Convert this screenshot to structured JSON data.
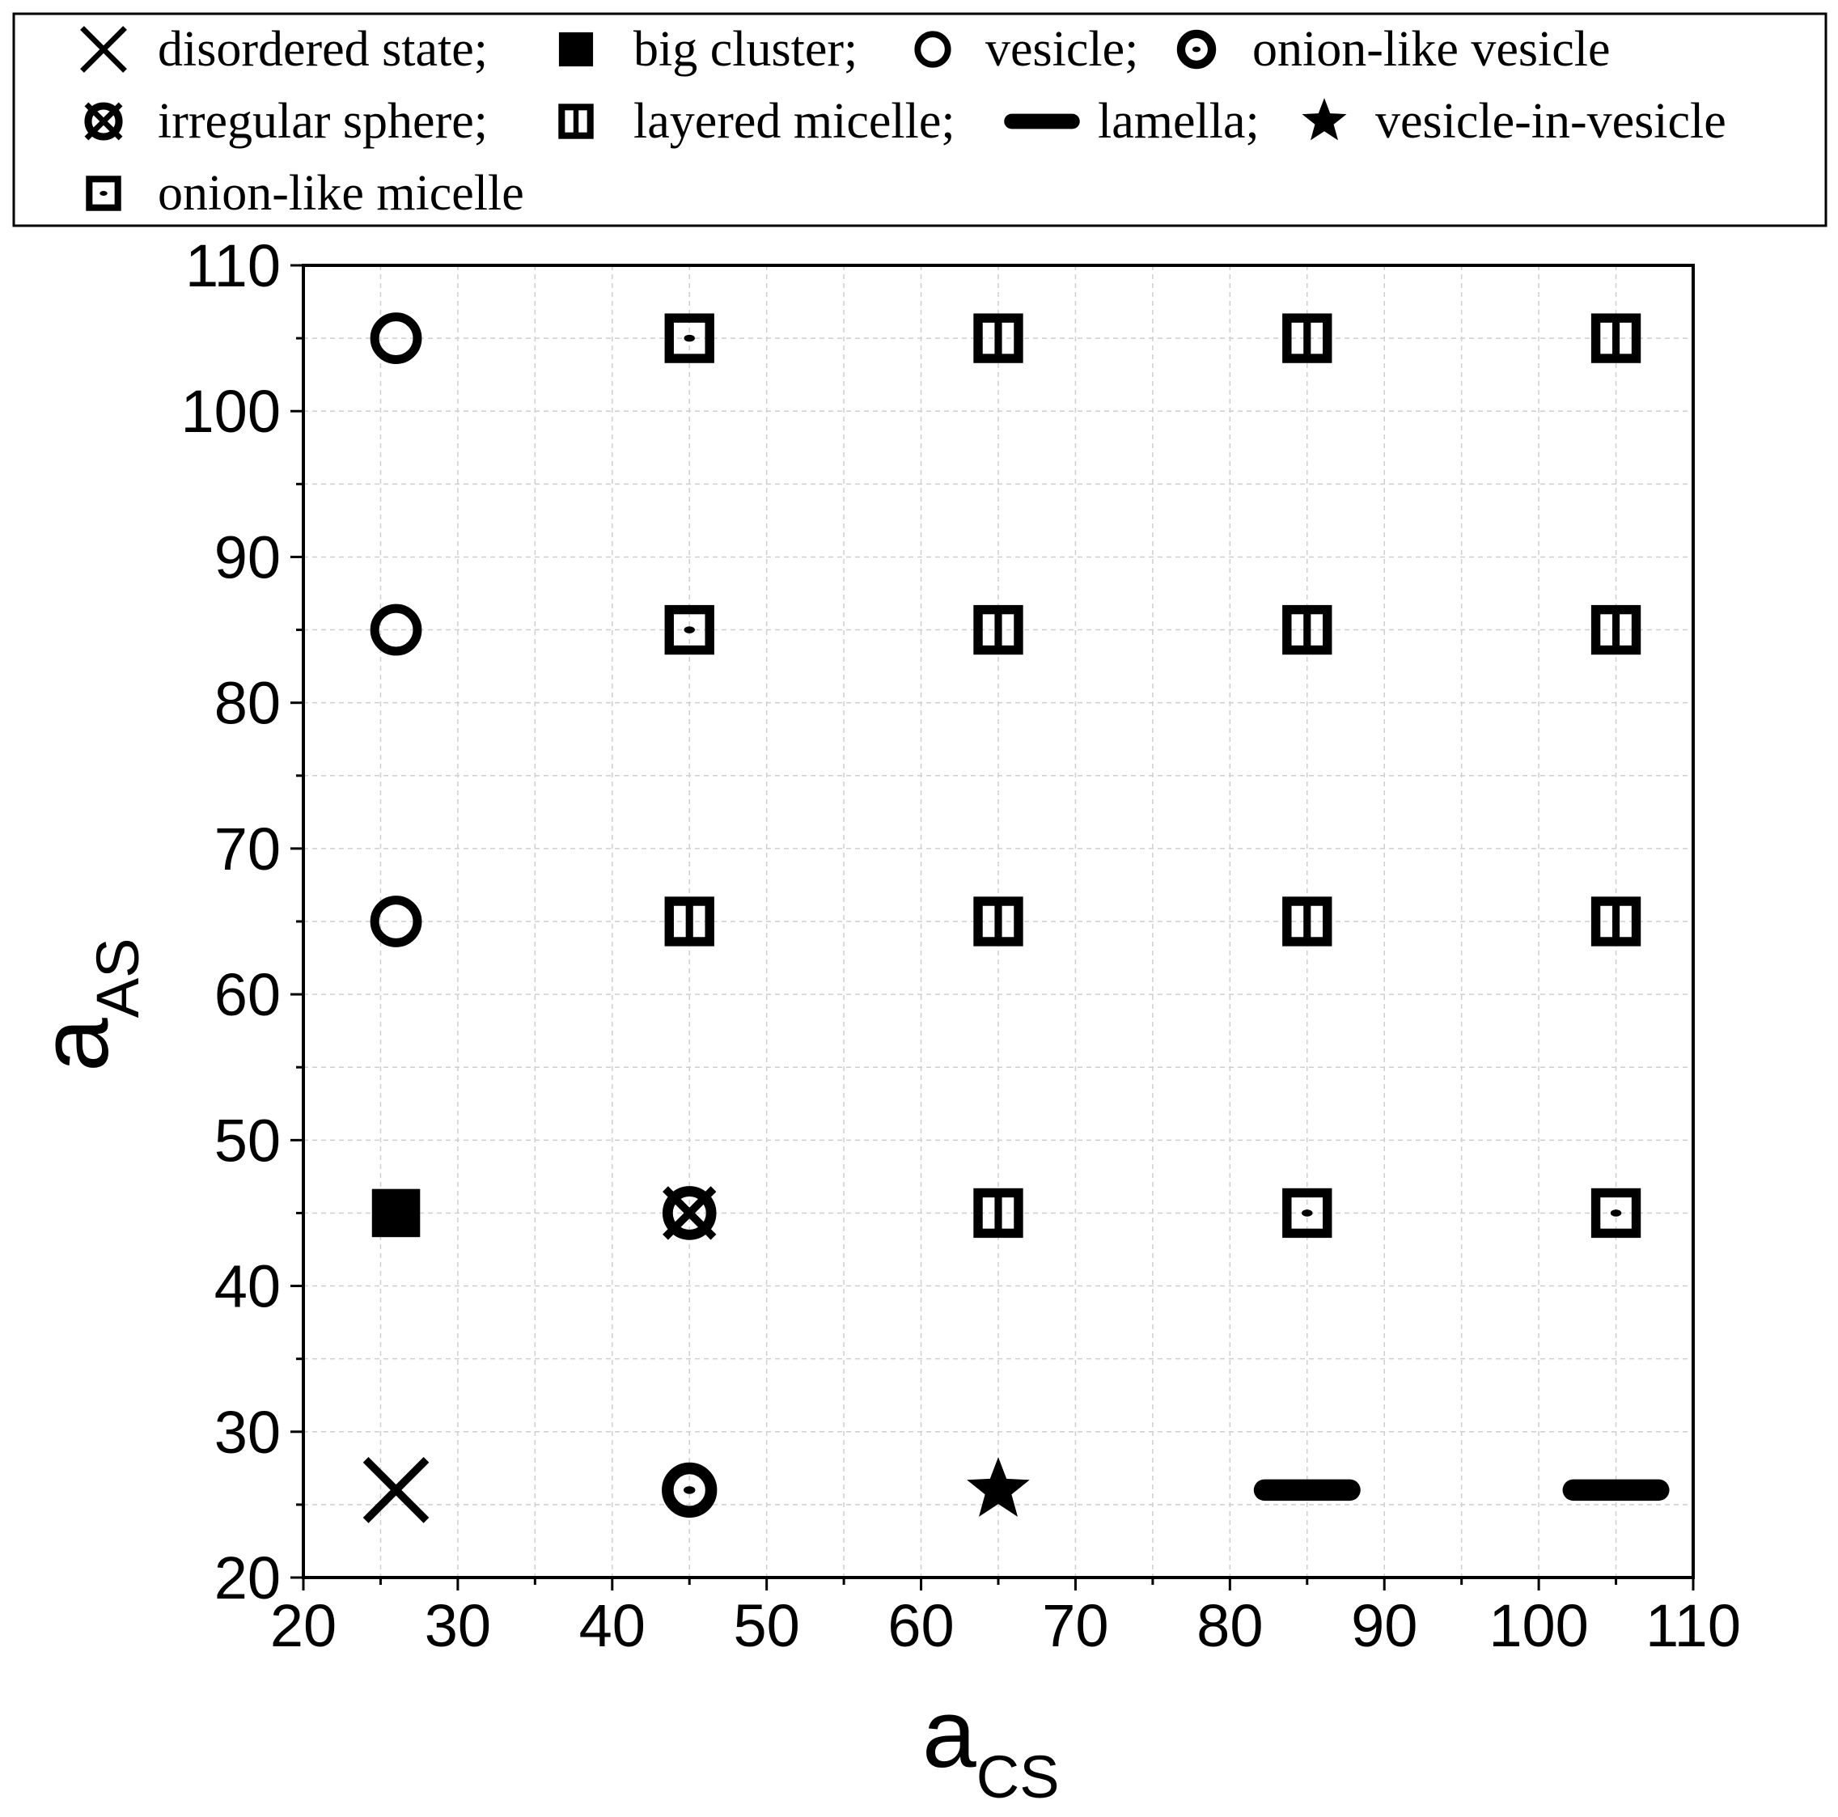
{
  "chart_data": {
    "type": "scatter",
    "title": "",
    "xlabel": "a",
    "xlabel_sub": "CS",
    "ylabel": "a",
    "ylabel_sub": "AS",
    "xlim": [
      20,
      110
    ],
    "ylim": [
      20,
      110
    ],
    "xticks": [
      20,
      30,
      40,
      50,
      60,
      70,
      80,
      90,
      100,
      110
    ],
    "yticks": [
      20,
      30,
      40,
      50,
      60,
      70,
      80,
      90,
      100,
      110
    ],
    "grid": true,
    "legend_position": "top, above plot",
    "legend": [
      {
        "marker": "x",
        "label": "disordered state;"
      },
      {
        "marker": "filled-square",
        "label": "big cluster;"
      },
      {
        "marker": "circle",
        "label": "vesicle;"
      },
      {
        "marker": "dot-circle",
        "label": "onion-like vesicle"
      },
      {
        "marker": "x-circle",
        "label": "irregular sphere;"
      },
      {
        "marker": "bar-square",
        "label": "layered micelle;"
      },
      {
        "marker": "lamella",
        "label": "lamella;"
      },
      {
        "marker": "star",
        "label": "vesicle-in-vesicle"
      },
      {
        "marker": "dot-square",
        "label": "onion-like micelle"
      }
    ],
    "points": [
      {
        "x": 26,
        "y": 105,
        "marker": "circle"
      },
      {
        "x": 26,
        "y": 85,
        "marker": "circle"
      },
      {
        "x": 26,
        "y": 65,
        "marker": "circle"
      },
      {
        "x": 26,
        "y": 45,
        "marker": "filled-square"
      },
      {
        "x": 26,
        "y": 26,
        "marker": "x"
      },
      {
        "x": 45,
        "y": 105,
        "marker": "dot-square"
      },
      {
        "x": 45,
        "y": 85,
        "marker": "dot-square"
      },
      {
        "x": 45,
        "y": 65,
        "marker": "bar-square"
      },
      {
        "x": 45,
        "y": 45,
        "marker": "x-circle"
      },
      {
        "x": 45,
        "y": 26,
        "marker": "dot-circle"
      },
      {
        "x": 65,
        "y": 105,
        "marker": "bar-square"
      },
      {
        "x": 65,
        "y": 85,
        "marker": "bar-square"
      },
      {
        "x": 65,
        "y": 65,
        "marker": "bar-square"
      },
      {
        "x": 65,
        "y": 45,
        "marker": "bar-square"
      },
      {
        "x": 65,
        "y": 26,
        "marker": "star"
      },
      {
        "x": 85,
        "y": 105,
        "marker": "bar-square"
      },
      {
        "x": 85,
        "y": 85,
        "marker": "bar-square"
      },
      {
        "x": 85,
        "y": 65,
        "marker": "bar-square"
      },
      {
        "x": 85,
        "y": 45,
        "marker": "dot-square"
      },
      {
        "x": 85,
        "y": 26,
        "marker": "lamella"
      },
      {
        "x": 105,
        "y": 105,
        "marker": "bar-square"
      },
      {
        "x": 105,
        "y": 85,
        "marker": "bar-square"
      },
      {
        "x": 105,
        "y": 65,
        "marker": "bar-square"
      },
      {
        "x": 105,
        "y": 45,
        "marker": "dot-square"
      },
      {
        "x": 105,
        "y": 26,
        "marker": "lamella"
      }
    ]
  }
}
